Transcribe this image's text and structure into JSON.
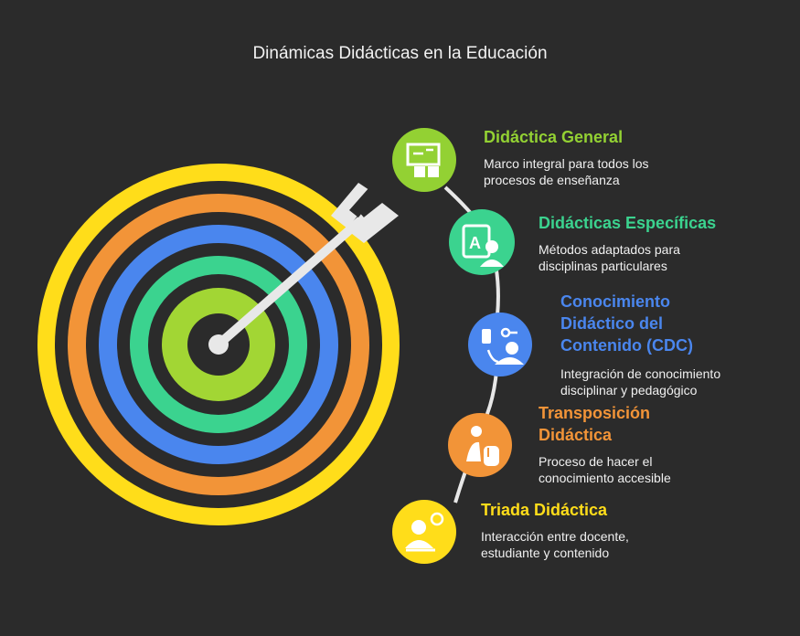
{
  "title": "Dinámicas Didácticas en la Educación",
  "items": [
    {
      "title": "Didáctica General",
      "desc_line1": "Marco integral para todos los",
      "desc_line2": "procesos de enseñanza",
      "color": "#93d133",
      "icon": "presentation-board-icon"
    },
    {
      "title": "Didácticas Específicas",
      "desc_line1": "Métodos adaptados para",
      "desc_line2": "disciplinas particulares",
      "color": "#3bd38f",
      "icon": "letter-a-student-icon"
    },
    {
      "title_line1": "Conocimiento",
      "title_line2": "Didáctico del",
      "title_line3": "Contenido (CDC)",
      "desc_line1": "Integración de conocimiento",
      "desc_line2": "disciplinar y pedagógico",
      "color": "#4a86ee",
      "icon": "knowledge-person-icon"
    },
    {
      "title_line1": "Transposición",
      "title_line2": "Didáctica",
      "desc_line1": "Proceso de hacer el",
      "desc_line2": "conocimiento accesible",
      "color": "#f29438",
      "icon": "hand-gesture-icon"
    },
    {
      "title": "Triada Didáctica",
      "desc_line1": "Interacción entre docente,",
      "desc_line2": "estudiante y contenido",
      "color": "#ffdd1a",
      "icon": "teacher-student-icon"
    }
  ],
  "target_colors": [
    "#ffdd1a",
    "#f29438",
    "#4a86ee",
    "#3bd38f",
    "#a2d634"
  ]
}
